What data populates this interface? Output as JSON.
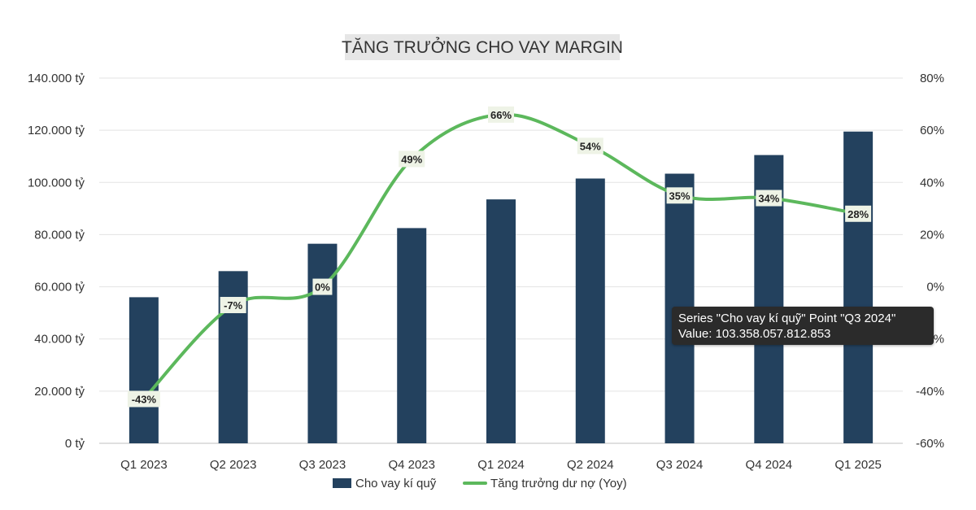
{
  "chart_data": {
    "type": "bar+line",
    "title": "TĂNG TRƯỞNG CHO VAY MARGIN",
    "categories": [
      "Q1 2023",
      "Q2 2023",
      "Q3 2023",
      "Q4 2023",
      "Q1 2024",
      "Q2 2024",
      "Q3 2024",
      "Q4 2024",
      "Q1 2025"
    ],
    "series": [
      {
        "name": "Cho vay kí quỹ",
        "type": "bar",
        "axis": "left",
        "color": "#23415e",
        "values": [
          56000,
          66000,
          76500,
          82500,
          93500,
          101500,
          103358,
          110500,
          119500
        ]
      },
      {
        "name": "Tăng trưởng dư nợ (Yoy)",
        "type": "line",
        "axis": "right",
        "color": "#5cb85c",
        "values": [
          -43,
          -7,
          0,
          49,
          66,
          54,
          35,
          34,
          28
        ],
        "labels": [
          "-43%",
          "-7%",
          "0%",
          "49%",
          "66%",
          "54%",
          "35%",
          "34%",
          "28%"
        ]
      }
    ],
    "left_axis": {
      "ylim": [
        0,
        140000
      ],
      "ticks": [
        "0 tỷ",
        "20.000 tỷ",
        "40.000 tỷ",
        "60.000 tỷ",
        "80.000 tỷ",
        "100.000 tỷ",
        "120.000 tỷ",
        "140.000 tỷ"
      ]
    },
    "right_axis": {
      "ylim": [
        -60,
        80
      ],
      "ticks": [
        "-60%",
        "-40%",
        "-20%",
        "0%",
        "20%",
        "40%",
        "60%",
        "80%"
      ]
    },
    "grid": true,
    "legend_position": "bottom"
  },
  "tooltip": {
    "line1": "Series \"Cho vay kí quỹ\" Point \"Q3 2024\"",
    "line2": "Value: 103.358.057.812.853"
  }
}
